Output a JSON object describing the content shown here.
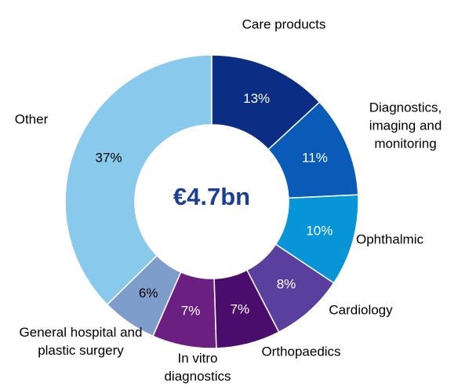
{
  "chart_data": {
    "type": "donut",
    "center_label": "€4.7bn",
    "categories": [
      "Care products",
      "Diagnostics, imaging and monitoring",
      "Ophthalmic",
      "Cardiology",
      "Orthopaedics",
      "In vitro diagnostics",
      "General hospital and plastic surgery",
      "Other"
    ],
    "values": [
      13,
      11,
      10,
      8,
      7,
      7,
      6,
      37
    ],
    "value_labels": [
      "13%",
      "11%",
      "10%",
      "8%",
      "7%",
      "7%",
      "6%",
      "37%"
    ],
    "colors": [
      "#0b2e84",
      "#0a5bb7",
      "#0895d8",
      "#5b3f9f",
      "#4b0d6b",
      "#6b1f80",
      "#7f9dcb",
      "#88c9ec"
    ]
  }
}
